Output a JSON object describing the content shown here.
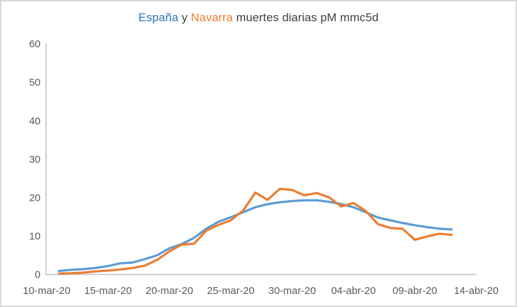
{
  "title": {
    "espana": "España",
    "conjunction": " y ",
    "navarra": "Navarra",
    "rest": " muertes diarias pM mmc5d"
  },
  "colors": {
    "espana_title_blue": "#2E75B6",
    "navarra_title_orange": "#ED7D31",
    "line_blue": "#5B9BD5",
    "line_orange": "#ED7D31",
    "axis_text": "#595959",
    "axis_line": "#BFBFBF",
    "frame_border": "#D9D9D9"
  },
  "chart_data": {
    "type": "line",
    "title": "España y Navarra muertes diarias pM mmc5d",
    "xlabel": "",
    "ylabel": "",
    "grid": false,
    "legend_position": "none (series identified by colored words in title)",
    "y_axis": {
      "min": 0,
      "max": 60,
      "step": 10,
      "tick_labels": [
        "0",
        "10",
        "20",
        "30",
        "40",
        "50",
        "60"
      ]
    },
    "x_axis": {
      "domain_days": [
        0,
        35
      ],
      "tick_days": [
        0,
        5,
        10,
        15,
        20,
        25,
        30,
        35
      ],
      "tick_labels": [
        "10-mar-20",
        "15-mar-20",
        "20-mar-20",
        "25-mar-20",
        "30-mar-20",
        "04-abr-20",
        "09-abr-20",
        "14-abr-20"
      ]
    },
    "dates": [
      "11-mar-20",
      "12-mar-20",
      "13-mar-20",
      "14-mar-20",
      "15-mar-20",
      "16-mar-20",
      "17-mar-20",
      "18-mar-20",
      "19-mar-20",
      "20-mar-20",
      "21-mar-20",
      "22-mar-20",
      "23-mar-20",
      "24-mar-20",
      "25-mar-20",
      "26-mar-20",
      "27-mar-20",
      "28-mar-20",
      "29-mar-20",
      "30-mar-20",
      "31-mar-20",
      "01-abr-20",
      "02-abr-20",
      "03-abr-20",
      "04-abr-20",
      "05-abr-20",
      "06-abr-20",
      "07-abr-20",
      "08-abr-20",
      "09-abr-20",
      "10-abr-20",
      "11-abr-20",
      "12-abr-20"
    ],
    "series": [
      {
        "name": "España",
        "color": "#5B9BD5",
        "start_day": 1,
        "values": [
          0.9,
          1.2,
          1.4,
          1.7,
          2.2,
          2.9,
          3.1,
          4.0,
          5.0,
          6.8,
          7.9,
          9.5,
          11.9,
          13.7,
          14.9,
          16.2,
          17.5,
          18.3,
          18.8,
          19.1,
          19.3,
          19.3,
          18.9,
          18.3,
          17.5,
          16.2,
          14.8,
          14.1,
          13.4,
          12.8,
          12.3,
          11.9,
          11.7
        ]
      },
      {
        "name": "Navarra",
        "color": "#ED7D31",
        "start_day": 1,
        "values": [
          0.2,
          0.3,
          0.5,
          0.8,
          1.0,
          1.3,
          1.7,
          2.3,
          3.8,
          6.0,
          7.8,
          8.0,
          11.4,
          12.9,
          14.1,
          16.6,
          21.3,
          19.4,
          22.3,
          22.0,
          20.6,
          21.2,
          20.1,
          17.7,
          18.6,
          16.5,
          13.1,
          12.1,
          11.9,
          9.0,
          9.9,
          10.6,
          10.3
        ]
      }
    ]
  }
}
